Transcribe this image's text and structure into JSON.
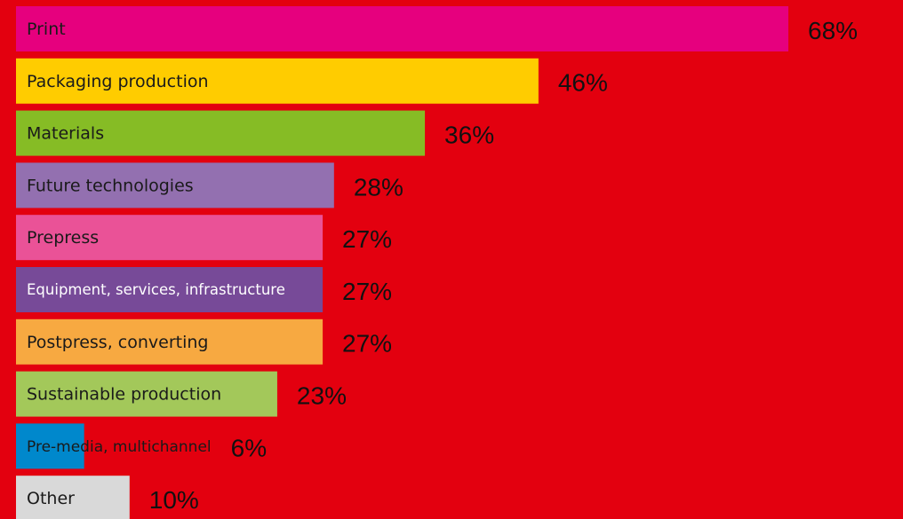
{
  "chart_data": {
    "type": "hbar",
    "categories": [
      "Print",
      "Packaging production",
      "Materials",
      "Future technologies",
      "Prepress",
      "Equipment, services, infrastructure",
      "Postpress, converting",
      "Sustainable production",
      "Pre-media, multichannel",
      "Other"
    ],
    "values": [
      68,
      46,
      36,
      28,
      27,
      27,
      27,
      23,
      6,
      10
    ],
    "value_labels": [
      "68%",
      "46%",
      "36%",
      "28%",
      "27%",
      "27%",
      "27%",
      "23%",
      "6%",
      "10%"
    ],
    "colors": [
      "#e6007e",
      "#ffcc00",
      "#86bc25",
      "#9370b0",
      "#ea5297",
      "#774a98",
      "#f7a941",
      "#a3c85a",
      "#0088cc",
      "#d9d9d9"
    ],
    "background": "#e3000f"
  }
}
